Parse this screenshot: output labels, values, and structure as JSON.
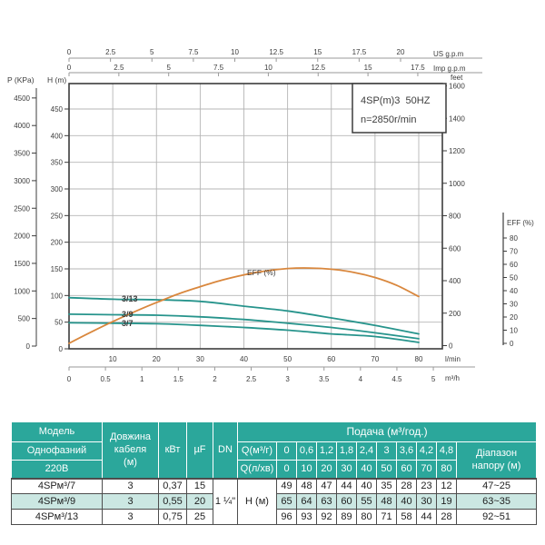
{
  "colors": {
    "teal_curve": "#27948c",
    "orange_curve": "#d9873d",
    "grid": "#b5b5b5",
    "frame": "#3c3c3c",
    "axis_light": "#9a9a9a",
    "text": "#3c3c3c",
    "table_teal": "#2ba79b",
    "table_light_row": "#cbe7e2"
  },
  "chart": {
    "axes": {
      "us_gpm": {
        "label": "US g.p.m",
        "ticks": [
          "0",
          "2.5",
          "5",
          "7.5",
          "10",
          "12.5",
          "15",
          "17.5",
          "20"
        ]
      },
      "imp_gpm": {
        "label": "Imp g.p.m",
        "ticks": [
          "0",
          "2.5",
          "5",
          "7.5",
          "10",
          "12.5",
          "15",
          "17.5"
        ]
      },
      "p_kpa": {
        "label": "P (KPa)",
        "ticks": [
          "0",
          "500",
          "1000",
          "1500",
          "2000",
          "2500",
          "3000",
          "3500",
          "4000",
          "4500"
        ]
      },
      "h_m": {
        "label": "H (m)",
        "ticks": [
          "0",
          "50",
          "100",
          "150",
          "200",
          "250",
          "300",
          "350",
          "400",
          "450"
        ]
      },
      "feet": {
        "label": "feet",
        "ticks": [
          "0",
          "200",
          "400",
          "600",
          "800",
          "1000",
          "1200",
          "1400",
          "1600"
        ]
      },
      "eff": {
        "label": "EFF (%)",
        "ticks": [
          "0",
          "10",
          "20",
          "30",
          "40",
          "50",
          "60",
          "70",
          "80"
        ]
      },
      "lmin": {
        "label": "l/min",
        "ticks": [
          "10",
          "20",
          "30",
          "40",
          "50",
          "60",
          "70",
          "80"
        ]
      },
      "m3h": {
        "label": "m³/h",
        "ticks": [
          "0",
          "0.5",
          "1",
          "1.5",
          "2",
          "2.5",
          "3",
          "3.5",
          "4",
          "4.5",
          "5"
        ]
      }
    }
  },
  "chart_data": {
    "type": "line",
    "title": "4SP(m)3  50HZ",
    "annotation": "n=2850r/min",
    "x_lmin": [
      0,
      10,
      20,
      30,
      40,
      50,
      60,
      70,
      80
    ],
    "x_axis_units": [
      "l/min",
      "m³/h",
      "US g.p.m",
      "Imp g.p.m"
    ],
    "y_axis_units": [
      "H (m)",
      "P (KPa)",
      "feet",
      "EFF (%)"
    ],
    "xlim_lmin": [
      0,
      85.4
    ],
    "ylim_h_m": [
      0,
      497
    ],
    "grid": true,
    "series": [
      {
        "name": "3/7",
        "kind": "head-curve",
        "color": "#27948c",
        "values_h_m": [
          49,
          48,
          47,
          44,
          40,
          35,
          28,
          23,
          12
        ]
      },
      {
        "name": "3/9",
        "kind": "head-curve",
        "color": "#27948c",
        "values_h_m": [
          65,
          64,
          63,
          60,
          55,
          48,
          40,
          30,
          19
        ]
      },
      {
        "name": "3/13",
        "kind": "head-curve",
        "color": "#27948c",
        "values_h_m": [
          96,
          93,
          92,
          89,
          80,
          71,
          58,
          44,
          28
        ]
      },
      {
        "name": "EFF (%)",
        "kind": "efficiency-curve",
        "color": "#d9873d",
        "x_lmin": [
          0,
          5,
          10,
          15,
          20,
          25,
          30,
          35,
          40,
          45,
          50,
          55,
          60,
          65,
          70,
          75,
          80
        ],
        "values_eff_pct": [
          0,
          8.5,
          16.5,
          24,
          31,
          37.5,
          43,
          48,
          52,
          55,
          56.8,
          57.2,
          56.3,
          54,
          50,
          44,
          35.5
        ]
      }
    ]
  },
  "table": {
    "header": {
      "model_rows": [
        "Модель",
        "Однофазний",
        "220В"
      ],
      "cable": "Довжина\nкабеля\n(м)",
      "kw": "кВт",
      "uf": "µF",
      "dn": "DN",
      "flow_title": "Подача (м³/год.)",
      "q_m3h_label": "Q(м³/г)",
      "q_lmin_label": "Q(л/хв)",
      "q_m3h_values": [
        "0",
        "0,6",
        "1,2",
        "1,8",
        "2,4",
        "3",
        "3,6",
        "4,2",
        "4,8"
      ],
      "q_lmin_values": [
        "0",
        "10",
        "20",
        "30",
        "40",
        "50",
        "60",
        "70",
        "80"
      ],
      "range": "Діапазон\nнапору (м)"
    },
    "dn_value": "1 ¼\"",
    "h_label": "H (м)",
    "rows": [
      {
        "model": "4SPм³/7",
        "cable": "3",
        "kw": "0,37",
        "uf": "15",
        "h": [
          "49",
          "48",
          "47",
          "44",
          "40",
          "35",
          "28",
          "23",
          "12"
        ],
        "range": "47~25"
      },
      {
        "model": "4SPм³/9",
        "cable": "3",
        "kw": "0,55",
        "uf": "20",
        "h": [
          "65",
          "64",
          "63",
          "60",
          "55",
          "48",
          "40",
          "30",
          "19"
        ],
        "range": "63~35"
      },
      {
        "model": "4SPм³/13",
        "cable": "3",
        "kw": "0,75",
        "uf": "25",
        "h": [
          "96",
          "93",
          "92",
          "89",
          "80",
          "71",
          "58",
          "44",
          "28"
        ],
        "range": "92~51"
      }
    ]
  }
}
